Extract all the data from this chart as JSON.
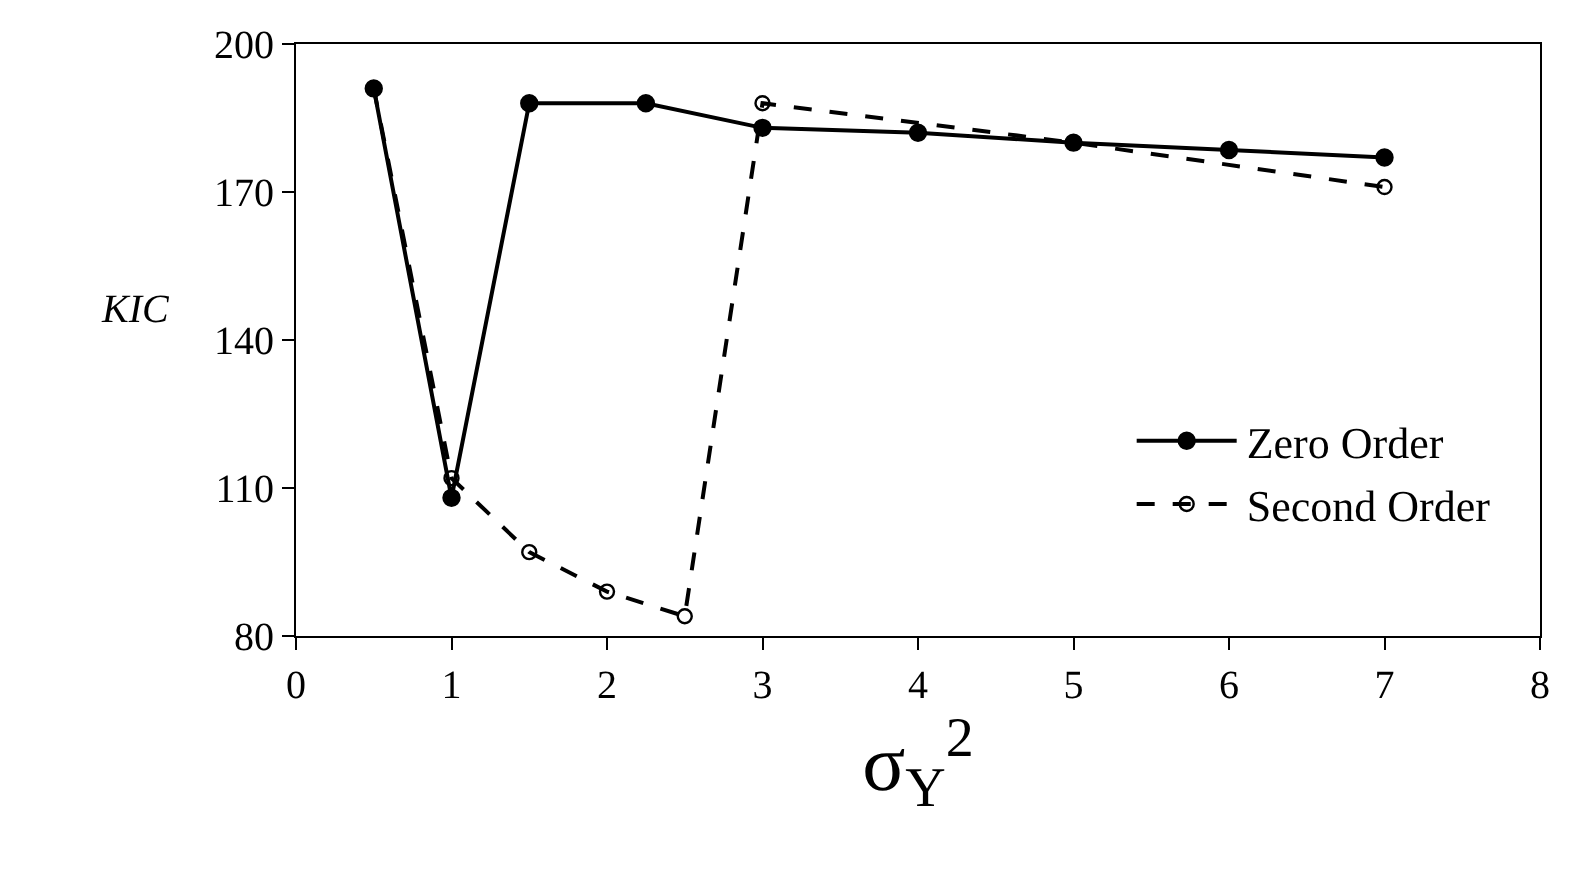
{
  "chart_data": {
    "type": "line",
    "xlabel": "σ$_{Y}$$^{2}$",
    "ylabel": "KIC",
    "series": [
      {
        "name": "Zero Order",
        "color": "#000000",
        "marker": "circle",
        "line_style": "solid",
        "x": [
          0.5,
          1,
          1.5,
          2.25,
          3,
          4,
          5,
          6,
          7
        ],
        "values": [
          191,
          108,
          188,
          188,
          183,
          182,
          180,
          178.5,
          177
        ]
      },
      {
        "name": "Second Order",
        "color": "#000000",
        "marker": "circle",
        "line_style": "dashed",
        "x": [
          0.5,
          1,
          1.5,
          2,
          2.5,
          3,
          5,
          7
        ],
        "values": [
          191,
          112,
          97,
          89,
          84,
          188,
          180,
          171
        ]
      }
    ],
    "xlim": [
      0,
      8
    ],
    "xticks": [
      0,
      1,
      2,
      3,
      4,
      5,
      6,
      7,
      8
    ],
    "ylim": [
      80,
      200
    ],
    "yticks": [
      80,
      110,
      140,
      170,
      200
    ],
    "legend": "bottom right"
  }
}
